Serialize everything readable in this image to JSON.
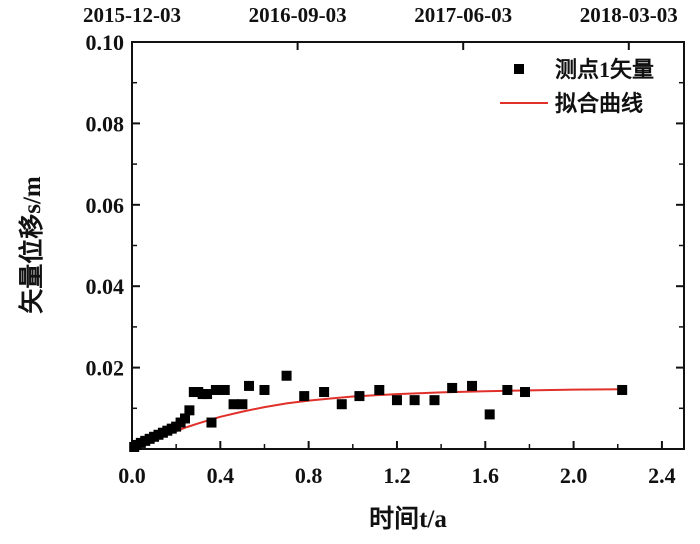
{
  "chart_data": {
    "type": "scatter",
    "xlabel": "时间t/a",
    "ylabel": "矢量位移s/m",
    "xlim": [
      0,
      2.5
    ],
    "ylim": [
      0,
      0.1
    ],
    "x_ticks": [
      "0.0",
      "0.4",
      "0.8",
      "1.2",
      "1.6",
      "2.0",
      "2.4"
    ],
    "x_tick_values": [
      0.0,
      0.4,
      0.8,
      1.2,
      1.6,
      2.0,
      2.4
    ],
    "y_ticks": [
      "0.02",
      "0.04",
      "0.06",
      "0.08",
      "0.10"
    ],
    "y_tick_values": [
      0.02,
      0.04,
      0.06,
      0.08,
      0.1
    ],
    "top_axis": {
      "tick_labels": [
        "2015-12-03",
        "2016-09-03",
        "2017-06-03",
        "2018-03-03"
      ],
      "tick_positions": [
        0.0,
        0.75,
        1.5,
        2.25
      ]
    },
    "grid": false,
    "legend": {
      "position": "top-right"
    },
    "series": [
      {
        "name": "测点1矢量",
        "kind": "scatter",
        "marker": "square",
        "color": "#000000",
        "x": [
          0.01,
          0.02,
          0.04,
          0.06,
          0.08,
          0.1,
          0.12,
          0.14,
          0.16,
          0.18,
          0.2,
          0.22,
          0.24,
          0.26,
          0.28,
          0.3,
          0.32,
          0.34,
          0.36,
          0.38,
          0.42,
          0.46,
          0.5,
          0.53,
          0.6,
          0.7,
          0.78,
          0.87,
          0.95,
          1.03,
          1.12,
          1.2,
          1.28,
          1.37,
          1.45,
          1.54,
          1.62,
          1.7,
          1.78,
          2.22
        ],
        "y": [
          0.0005,
          0.001,
          0.0015,
          0.002,
          0.0025,
          0.003,
          0.0035,
          0.004,
          0.0045,
          0.005,
          0.0055,
          0.0065,
          0.0075,
          0.0095,
          0.014,
          0.014,
          0.0135,
          0.0135,
          0.0065,
          0.0145,
          0.0145,
          0.011,
          0.011,
          0.0155,
          0.0145,
          0.018,
          0.013,
          0.014,
          0.011,
          0.013,
          0.0145,
          0.012,
          0.012,
          0.012,
          0.015,
          0.0155,
          0.0085,
          0.0145,
          0.014,
          0.0145
        ]
      },
      {
        "name": "拟合曲线",
        "kind": "line",
        "color": "#e0302a",
        "x": [
          0.0,
          0.05,
          0.1,
          0.15,
          0.2,
          0.25,
          0.3,
          0.35,
          0.4,
          0.5,
          0.6,
          0.7,
          0.8,
          0.9,
          1.0,
          1.2,
          1.4,
          1.6,
          1.8,
          2.0,
          2.22
        ],
        "y": [
          0.0,
          0.0012,
          0.0023,
          0.0034,
          0.0044,
          0.0054,
          0.0063,
          0.0071,
          0.0079,
          0.0092,
          0.0103,
          0.0112,
          0.0119,
          0.0124,
          0.0129,
          0.0135,
          0.0139,
          0.0142,
          0.0144,
          0.0146,
          0.0147
        ]
      }
    ]
  },
  "colors": {
    "axis": "#111111",
    "fit_line": "#e0302a",
    "marker": "#000000"
  }
}
